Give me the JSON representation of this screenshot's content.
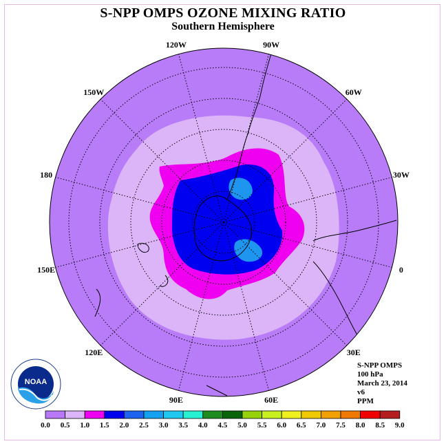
{
  "title": "S-NPP OMPS OZONE MIXING RATIO",
  "subtitle": "Southern Hemisphere",
  "longitude_labels": [
    "90W",
    "60W",
    "30W",
    "0",
    "30E",
    "60E",
    "90E",
    "120E",
    "150E",
    "180",
    "150W",
    "120W"
  ],
  "info": {
    "instrument": "S-NPP OMPS",
    "level": "100 hPa",
    "date": "March 23, 2014",
    "version": "v6",
    "units": "PPM"
  },
  "logo": {
    "icon": "noaa-logo-icon",
    "text": "NOAA"
  },
  "colorbar": {
    "ticks": [
      "0.0",
      "0.5",
      "1.0",
      "1.5",
      "2.0",
      "2.5",
      "3.0",
      "3.5",
      "4.0",
      "4.5",
      "5.0",
      "5.5",
      "6.0",
      "6.5",
      "7.0",
      "7.5",
      "8.0",
      "8.5",
      "9.0"
    ],
    "colors": [
      "#b878f8",
      "#dcb4f8",
      "#f000f0",
      "#0000f0",
      "#1e64f0",
      "#14a0f0",
      "#1ec8f0",
      "#28f0d2",
      "#1e8c1e",
      "#0a640a",
      "#96d20a",
      "#c8f01e",
      "#f0f01e",
      "#f0c800",
      "#f0a000",
      "#f07800",
      "#f00000",
      "#b41e1e"
    ],
    "last_color": "#785028"
  },
  "map_colors": {
    "outer": "#b87cf8",
    "ring_light": "#dcb4f8",
    "magenta": "#f000f0",
    "blue": "#0000f0",
    "cyan": "#1e96f0"
  }
}
